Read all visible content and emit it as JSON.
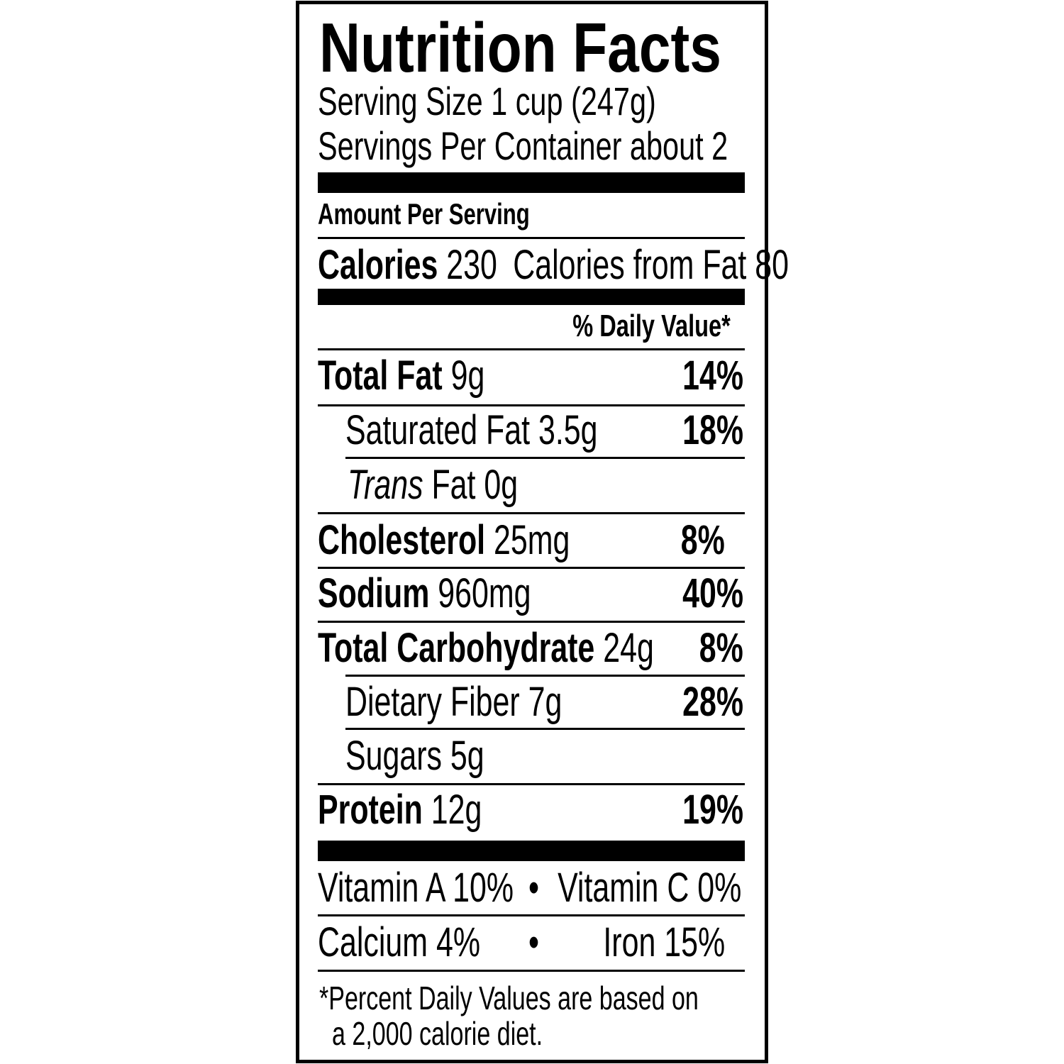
{
  "title": "Nutrition Facts",
  "serving_size": "Serving Size 1 cup (247g)",
  "servings_per_container": "Servings Per Container about 2",
  "amount_per_serving": "Amount Per Serving",
  "calories": {
    "label": "Calories",
    "value": "230",
    "from_fat": "Calories from Fat 80"
  },
  "daily_value_header": "% Daily Value*",
  "nutrients": [
    {
      "label": "Total Fat",
      "amount": "9g",
      "dv": "14%"
    },
    {
      "label": "Saturated Fat",
      "amount": "3.5g",
      "dv": "18%"
    },
    {
      "label": "Trans",
      "label_rest": "Fat",
      "amount": "0g"
    },
    {
      "label": "Cholesterol",
      "amount": "25mg",
      "dv": "8%"
    },
    {
      "label": "Sodium",
      "amount": "960mg",
      "dv": "40%"
    },
    {
      "label": "Total Carbohydrate",
      "amount": "24g",
      "dv": "8%"
    },
    {
      "label": "Dietary Fiber",
      "amount": "7g",
      "dv": "28%"
    },
    {
      "label": "Sugars",
      "amount": "5g"
    },
    {
      "label": "Protein",
      "amount": "12g",
      "dv": "19%"
    }
  ],
  "vitamins": {
    "vitamin_a": "Vitamin A 10%",
    "vitamin_c": "Vitamin C 0%",
    "calcium": "Calcium 4%",
    "iron": "Iron 15%",
    "bullet": "•"
  },
  "footnote": {
    "line1": "*Percent Daily Values are based on",
    "line2": "a 2,000 calorie diet."
  }
}
